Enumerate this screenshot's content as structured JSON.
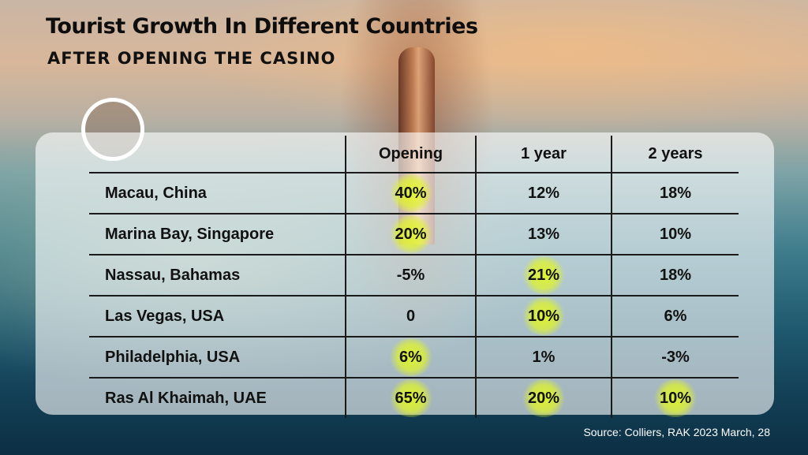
{
  "header": {
    "title": "Tourist Growth In Different Countries",
    "subtitle": "AFTER OPENING THE CASINO"
  },
  "source": "Source: Colliers, RAK 2023 March, 28",
  "colors": {
    "highlight": "#e1f528",
    "text": "#111111",
    "panel": "#ffffff"
  },
  "chart_data": {
    "type": "table",
    "title": "Tourist Growth In Different Countries",
    "subtitle": "AFTER OPENING THE CASINO",
    "columns": [
      "",
      "Opening",
      "1 year",
      "2 years"
    ],
    "rows": [
      {
        "country": "Macau, China",
        "values": [
          "40%",
          "12%",
          "18%"
        ],
        "highlight": [
          true,
          false,
          false
        ]
      },
      {
        "country": "Marina Bay, Singapore",
        "values": [
          "20%",
          "13%",
          "10%"
        ],
        "highlight": [
          true,
          false,
          false
        ]
      },
      {
        "country": "Nassau, Bahamas",
        "values": [
          "-5%",
          "21%",
          "18%"
        ],
        "highlight": [
          false,
          true,
          false
        ]
      },
      {
        "country": "Las Vegas, USA",
        "values": [
          "0",
          "10%",
          "6%"
        ],
        "highlight": [
          false,
          true,
          false
        ]
      },
      {
        "country": "Philadelphia, USA",
        "values": [
          "6%",
          "1%",
          "-3%"
        ],
        "highlight": [
          true,
          false,
          false
        ]
      },
      {
        "country": "Ras Al Khaimah, UAE",
        "values": [
          "65%",
          "20%",
          "10%"
        ],
        "highlight": [
          true,
          true,
          true
        ]
      }
    ]
  }
}
